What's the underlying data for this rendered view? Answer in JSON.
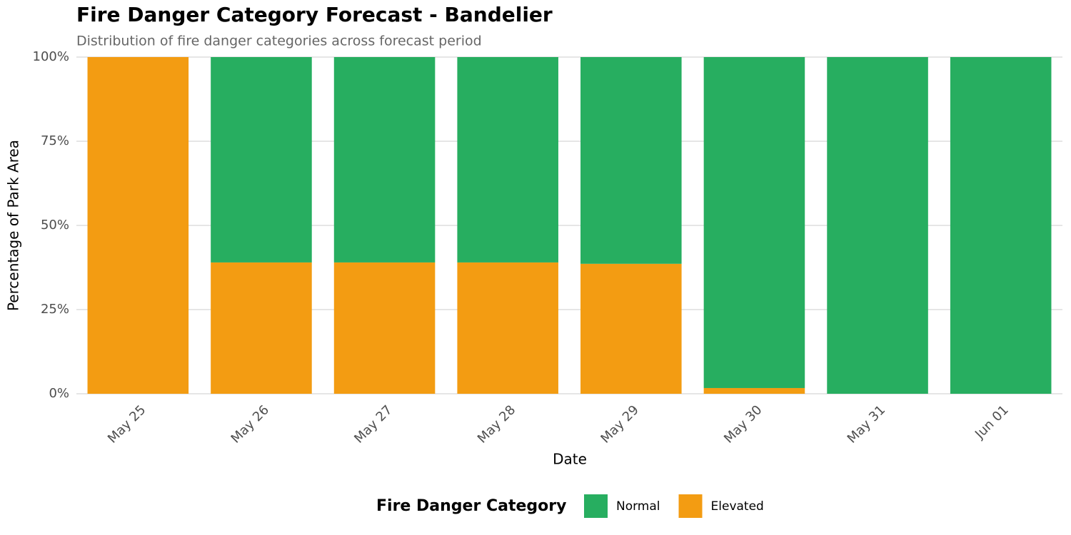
{
  "chart_data": {
    "type": "stacked_bar",
    "title": "Fire Danger Category Forecast - Bandelier",
    "subtitle": "Distribution of fire danger categories across forecast period",
    "x_label": "Date",
    "y_label": "Percentage of Park Area",
    "legend_title": "Fire Danger Category",
    "categories": [
      "May 25",
      "May 26",
      "May 27",
      "May 28",
      "May 29",
      "May 30",
      "May 31",
      "Jun 01"
    ],
    "series": [
      {
        "name": "Normal",
        "color": "#27ae60",
        "values": [
          0,
          61,
          61,
          61,
          61.4,
          98.3,
          100,
          100
        ]
      },
      {
        "name": "Elevated",
        "color": "#f39c12",
        "values": [
          100,
          39,
          39,
          39,
          38.6,
          1.7,
          0,
          0
        ]
      }
    ],
    "ylim": [
      0,
      100
    ],
    "yticks": [
      {
        "value": 0,
        "label": "0%"
      },
      {
        "value": 25,
        "label": "25%"
      },
      {
        "value": 50,
        "label": "50%"
      },
      {
        "value": 75,
        "label": "75%"
      },
      {
        "value": 100,
        "label": "100%"
      }
    ],
    "grid": true,
    "legend_position": "bottom"
  }
}
